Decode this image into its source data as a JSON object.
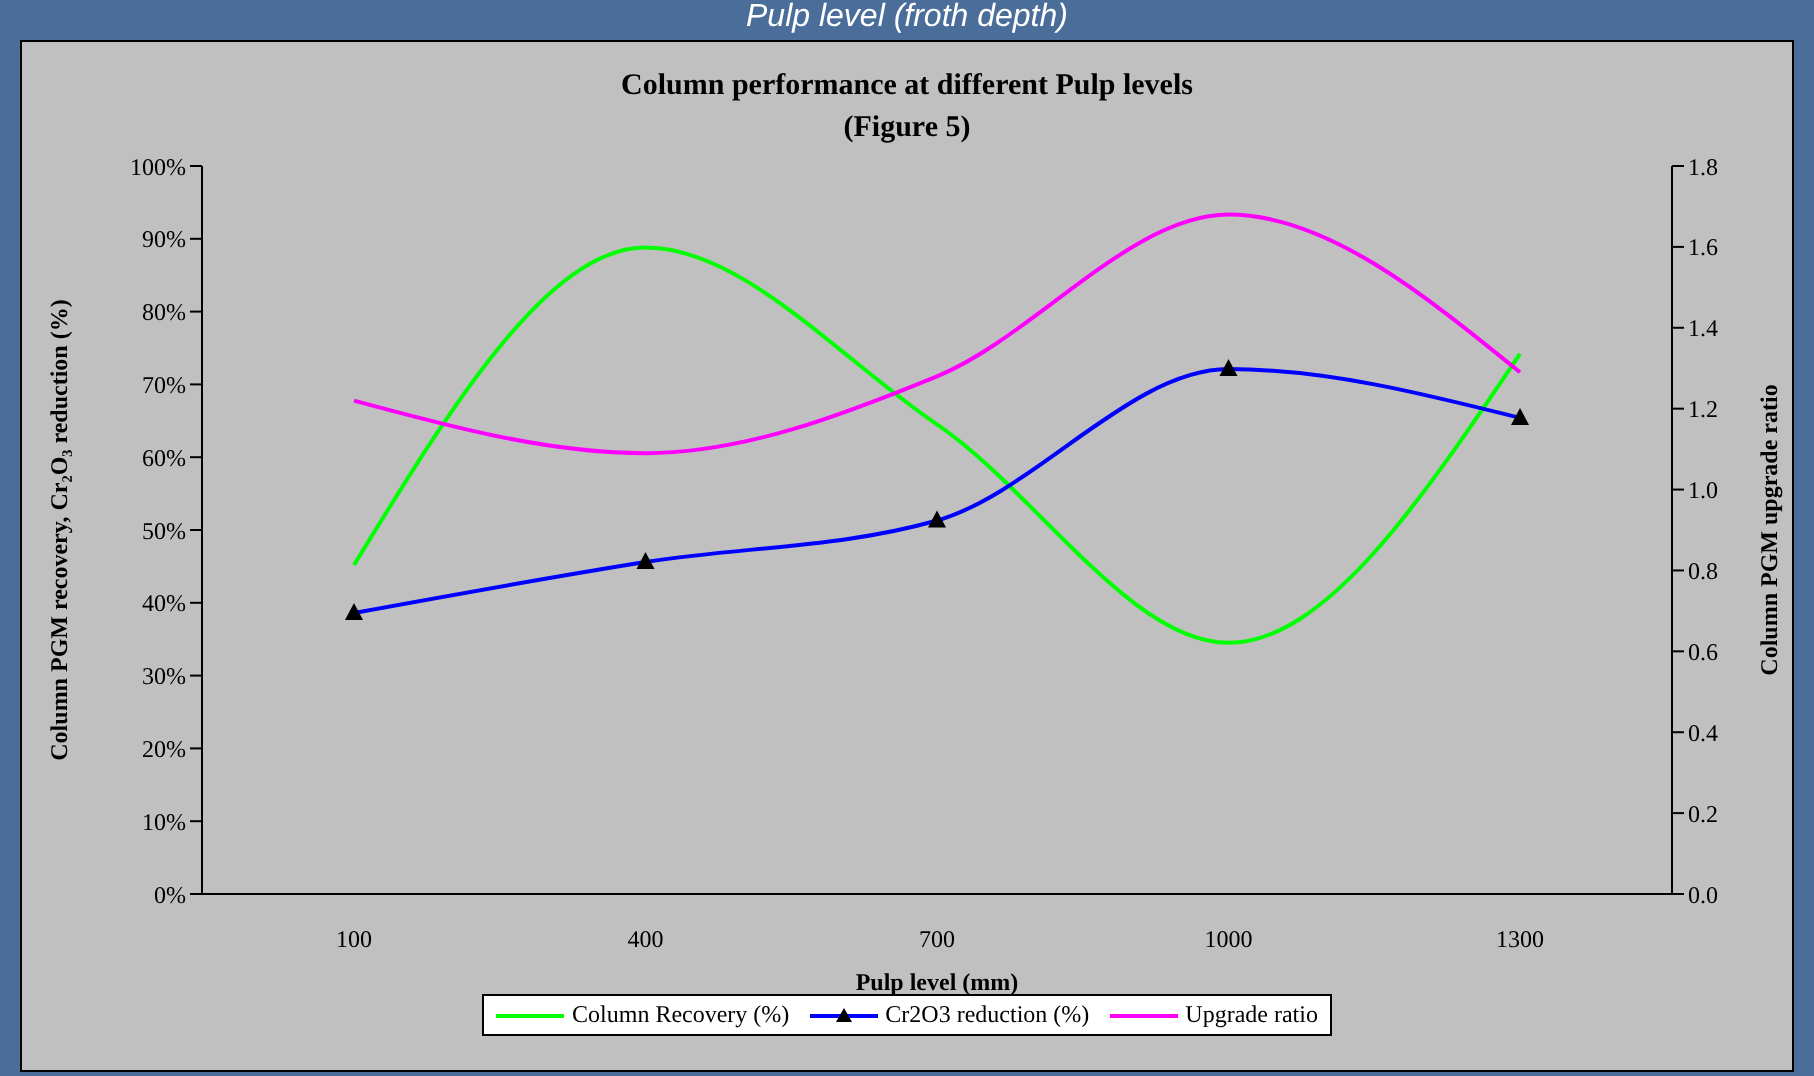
{
  "chart_data": {
    "type": "line",
    "title": "Column performance at different Pulp levels",
    "subtitle": "(Figure 5)",
    "annotations": [
      "Pulp level (froth depth)"
    ],
    "xlabel": "Pulp level (mm)",
    "ylabel": "Column PGM recovery, Cr₂O₃ reduction (%)",
    "y2label": "Column PGM upgrade ratio",
    "categories": [
      "100",
      "400",
      "700",
      "1000",
      "1300"
    ],
    "series": [
      {
        "name": "Column  Recovery (%)",
        "color": "#00ff00",
        "marker": "none",
        "values": [
          45.2,
          88.8,
          64.5,
          34.5,
          74.2
        ]
      },
      {
        "name": "Cr2O3  reduction (%)",
        "color": "#0000ff",
        "marker": "triangle",
        "values": [
          38.6,
          45.6,
          51.3,
          72.1,
          65.4
        ]
      },
      {
        "name": "Upgrade ratio",
        "color": "#ff00ff",
        "marker": "none",
        "axis": "y2",
        "values": [
          1.22,
          1.09,
          1.28,
          1.68,
          1.29
        ]
      }
    ],
    "ylim": [
      0,
      100
    ],
    "yticks": [
      {
        "value": 0,
        "label": "0%"
      },
      {
        "value": 10,
        "label": "10%"
      },
      {
        "value": 20,
        "label": "20%"
      },
      {
        "value": 30,
        "label": "30%"
      },
      {
        "value": 40,
        "label": "40%"
      },
      {
        "value": 50,
        "label": "50%"
      },
      {
        "value": 60,
        "label": "60%"
      },
      {
        "value": 70,
        "label": "70%"
      },
      {
        "value": 80,
        "label": "80%"
      },
      {
        "value": 90,
        "label": "90%"
      },
      {
        "value": 100,
        "label": "100%"
      }
    ],
    "y2lim": [
      0,
      1.8
    ],
    "y2ticks": [
      {
        "value": 0,
        "label": "0.0"
      },
      {
        "value": 0.2,
        "label": "0.2"
      },
      {
        "value": 0.4,
        "label": "0.4"
      },
      {
        "value": 0.6,
        "label": "0.6"
      },
      {
        "value": 0.8,
        "label": "0.8"
      },
      {
        "value": 1,
        "label": "1.0"
      },
      {
        "value": 1.2,
        "label": "1.2"
      },
      {
        "value": 1.4,
        "label": "1.4"
      },
      {
        "value": 1.6,
        "label": "1.6"
      },
      {
        "value": 1.8,
        "label": "1.8"
      }
    ],
    "grid": false,
    "legend": "bottom",
    "line_style": "solid"
  }
}
